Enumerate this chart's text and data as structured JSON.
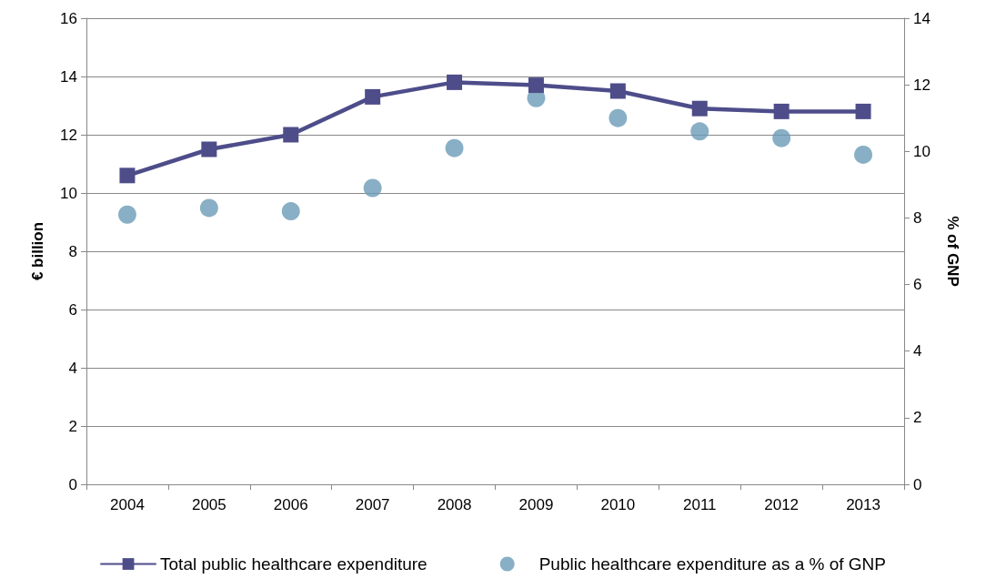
{
  "chart_data": {
    "type": "line",
    "ylabel": "€ billion",
    "y2label": "% of GNP",
    "categories": [
      "2004",
      "2005",
      "2006",
      "2007",
      "2008",
      "2009",
      "2010",
      "2011",
      "2012",
      "2013"
    ],
    "series": [
      {
        "name": "Total public healthcare expenditure",
        "color": "#4e4d8a",
        "marker": "square",
        "values": [
          10.6,
          11.5,
          12.0,
          13.3,
          13.8,
          13.7,
          13.5,
          12.9,
          12.8,
          12.8
        ]
      },
      {
        "name": "Public healthcare expenditure as a % of GNP",
        "type": "scatter",
        "axis": "y2",
        "color": "#6a9bb7",
        "marker": "circle",
        "values": [
          8.1,
          8.3,
          8.2,
          8.9,
          10.1,
          11.6,
          11.0,
          10.6,
          10.4,
          9.9
        ]
      }
    ],
    "ylim": [
      0,
      16
    ],
    "yticks": [
      0,
      2,
      4,
      6,
      8,
      10,
      12,
      14,
      16
    ],
    "y2lim": [
      0,
      14
    ],
    "y2ticks": [
      0,
      2,
      4,
      6,
      8,
      10,
      12,
      14
    ],
    "grid": "y",
    "legend": "bottom"
  }
}
